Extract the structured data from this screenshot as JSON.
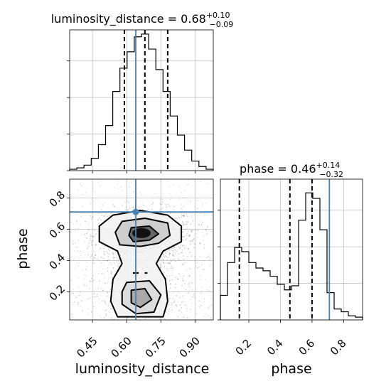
{
  "chart_data": [
    {
      "panel": "luminosity_distance-marginal",
      "type": "histogram",
      "title": {
        "base": "luminosity_distance = 0.68",
        "sup": "+0.10",
        "sub": "−0.09"
      },
      "x": {
        "range": [
          0.35,
          0.98
        ],
        "ticks": [
          0.45,
          0.6,
          0.75,
          0.9
        ],
        "tick_labels": [
          "0.45",
          "0.60",
          "0.75",
          "0.90"
        ],
        "label": "luminosity_distance"
      },
      "y": {
        "range": [
          0,
          1.0
        ]
      },
      "bin_edges": [
        0.35,
        0.3815,
        0.413,
        0.4445,
        0.476,
        0.5075,
        0.539,
        0.5705,
        0.602,
        0.6335,
        0.665,
        0.6965,
        0.728,
        0.7595,
        0.791,
        0.8225,
        0.854,
        0.8855,
        0.917,
        0.9485,
        0.98
      ],
      "counts": [
        0.01,
        0.02,
        0.04,
        0.09,
        0.19,
        0.33,
        0.58,
        0.75,
        0.87,
        0.98,
        1.0,
        0.89,
        0.74,
        0.58,
        0.4,
        0.26,
        0.15,
        0.07,
        0.03,
        0.01
      ],
      "quantiles": [
        0.59,
        0.68,
        0.78
      ],
      "truth": 0.64
    },
    {
      "panel": "phase-marginal",
      "type": "histogram",
      "title": {
        "base": "phase = 0.46",
        "sup": "+0.14",
        "sub": "−0.32"
      },
      "x": {
        "range": [
          0.02,
          0.92
        ],
        "ticks": [
          0.2,
          0.4,
          0.6,
          0.8
        ],
        "tick_labels": [
          "0.2",
          "0.4",
          "0.6",
          "0.8"
        ],
        "label": "phase"
      },
      "y": {
        "range": [
          0,
          1.0
        ]
      },
      "bin_edges": [
        0.02,
        0.065,
        0.11,
        0.155,
        0.2,
        0.245,
        0.29,
        0.335,
        0.38,
        0.425,
        0.47,
        0.515,
        0.56,
        0.605,
        0.65,
        0.695,
        0.74,
        0.785,
        0.83,
        0.875,
        0.92
      ],
      "counts": [
        0.18,
        0.42,
        0.53,
        0.5,
        0.42,
        0.38,
        0.36,
        0.32,
        0.26,
        0.22,
        0.25,
        0.73,
        0.93,
        0.89,
        0.66,
        0.2,
        0.08,
        0.06,
        0.03,
        0.02
      ],
      "quantiles": [
        0.14,
        0.46,
        0.6
      ],
      "truth": 0.71
    },
    {
      "panel": "luminosity_distance-vs-phase",
      "type": "scatter",
      "x": {
        "range": [
          0.35,
          0.98
        ],
        "ticks": [
          0.45,
          0.6,
          0.75,
          0.9
        ],
        "tick_labels": [
          "0.45",
          "0.60",
          "0.75",
          "0.90"
        ],
        "label": "luminosity_distance"
      },
      "y": {
        "range": [
          0.02,
          0.92
        ],
        "ticks": [
          0.2,
          0.4,
          0.6,
          0.8
        ],
        "tick_labels": [
          "0.2",
          "0.4",
          "0.6",
          "0.8"
        ],
        "label": "phase"
      },
      "truth": {
        "x": 0.64,
        "y": 0.71
      },
      "density_modes": [
        {
          "x": 0.68,
          "y": 0.56,
          "sx": 0.06,
          "sy": 0.05,
          "w": 1.0
        },
        {
          "x": 0.66,
          "y": 0.18,
          "sx": 0.06,
          "sy": 0.12,
          "w": 0.75
        }
      ],
      "contours": [
        [
          [
            0.54,
            0.69
          ],
          [
            0.66,
            0.72
          ],
          [
            0.78,
            0.69
          ],
          [
            0.84,
            0.62
          ],
          [
            0.84,
            0.52
          ],
          [
            0.76,
            0.46
          ],
          [
            0.73,
            0.38
          ],
          [
            0.77,
            0.28
          ],
          [
            0.78,
            0.14
          ],
          [
            0.76,
            0.04
          ],
          [
            0.56,
            0.04
          ],
          [
            0.53,
            0.14
          ],
          [
            0.54,
            0.28
          ],
          [
            0.58,
            0.38
          ],
          [
            0.56,
            0.46
          ],
          [
            0.48,
            0.52
          ],
          [
            0.48,
            0.62
          ]
        ],
        [
          [
            0.58,
            0.65
          ],
          [
            0.68,
            0.67
          ],
          [
            0.78,
            0.64
          ],
          [
            0.79,
            0.56
          ],
          [
            0.74,
            0.51
          ],
          [
            0.66,
            0.49
          ],
          [
            0.57,
            0.5
          ],
          [
            0.55,
            0.58
          ]
        ],
        [
          [
            0.62,
            0.61
          ],
          [
            0.7,
            0.62
          ],
          [
            0.74,
            0.57
          ],
          [
            0.7,
            0.53
          ],
          [
            0.63,
            0.52
          ],
          [
            0.61,
            0.56
          ]
        ],
        [
          [
            0.6,
            0.26
          ],
          [
            0.7,
            0.27
          ],
          [
            0.75,
            0.18
          ],
          [
            0.72,
            0.07
          ],
          [
            0.64,
            0.06
          ],
          [
            0.58,
            0.12
          ],
          [
            0.58,
            0.2
          ]
        ],
        [
          [
            0.62,
            0.21
          ],
          [
            0.68,
            0.22
          ],
          [
            0.71,
            0.15
          ],
          [
            0.66,
            0.1
          ],
          [
            0.62,
            0.13
          ]
        ]
      ],
      "blips": [
        {
          "x": 0.64,
          "y": 0.32,
          "w": 0.025
        },
        {
          "x": 0.685,
          "y": 0.32,
          "w": 0.012
        }
      ]
    }
  ]
}
